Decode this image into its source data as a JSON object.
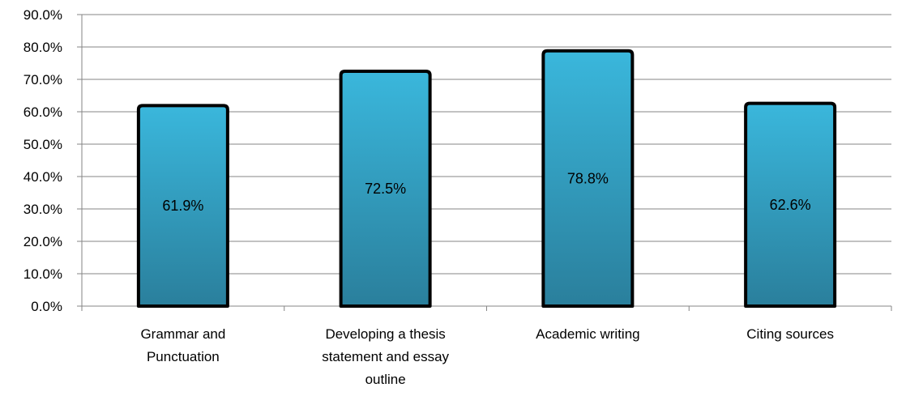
{
  "chart_data": {
    "type": "bar",
    "title": "",
    "xlabel": "",
    "ylabel": "",
    "categories": [
      [
        "Grammar and",
        "Punctuation"
      ],
      [
        "Developing a thesis",
        "statement and essay",
        "outline"
      ],
      [
        "Academic writing"
      ],
      [
        "Citing sources"
      ]
    ],
    "values": [
      61.9,
      72.5,
      78.8,
      62.6
    ],
    "data_labels": [
      "61.9%",
      "72.5%",
      "78.8%",
      "62.6%"
    ],
    "ylim": [
      0,
      90
    ],
    "yticks": [
      "0.0%",
      "10.0%",
      "20.0%",
      "30.0%",
      "40.0%",
      "50.0%",
      "60.0%",
      "70.0%",
      "80.0%",
      "90.0%"
    ],
    "grid": true,
    "legend": "none",
    "colors": {
      "bar_top": "#3ab7dc",
      "bar_bottom": "#2a7f9c",
      "bar_outline": "#000000",
      "grid": "#868686",
      "axis": "#868686"
    }
  }
}
